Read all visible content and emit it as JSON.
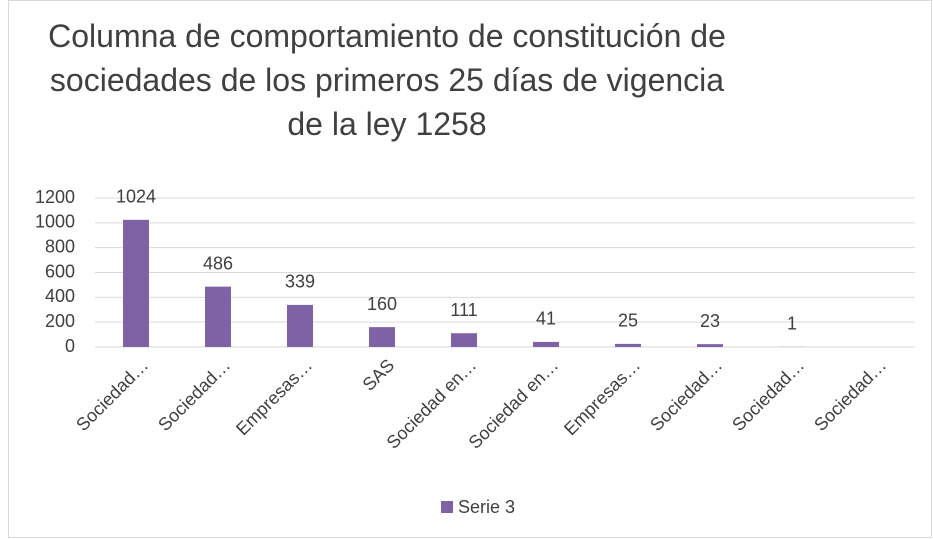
{
  "chart_data": {
    "type": "bar",
    "title": "Columna de comportamiento de constitución de\nsociedades de los primeros 25 días de vigencia\nde la ley 1258",
    "categories": [
      "Sociedad…",
      "Sociedad…",
      "Empresas…",
      "SAS",
      "Sociedad en…",
      "Sociedad en…",
      "Empresas…",
      "Sociedad…",
      "Sociedad…",
      "Sociedad…"
    ],
    "series": [
      {
        "name": "Serie 3",
        "color": "#7e62a5",
        "values": [
          1024,
          486,
          339,
          160,
          111,
          41,
          25,
          23,
          1,
          null
        ]
      }
    ],
    "ylim": [
      0,
      1200
    ],
    "yticks": [
      0,
      200,
      400,
      600,
      800,
      1000,
      1200
    ],
    "grid": true,
    "legend": "bottom"
  }
}
